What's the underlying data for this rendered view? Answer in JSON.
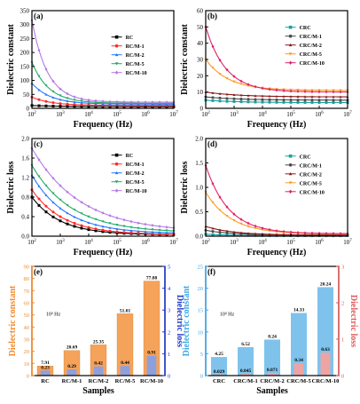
{
  "chart_data": [
    {
      "id": "a",
      "panel_label": "(a)",
      "type": "line",
      "xlabel": "Frequency (Hz)",
      "ylabel": "Dielectric constant",
      "xscale": "log",
      "xlim": [
        100,
        10000000
      ],
      "ylim": [
        0,
        350
      ],
      "x_ticks": [
        2,
        3,
        4,
        5,
        6,
        7
      ],
      "y_ticks": [
        0,
        50,
        100,
        150,
        200,
        250,
        300,
        350
      ],
      "legend_position": "right-middle",
      "series": [
        {
          "name": "RC",
          "color": "#000000",
          "marker": "square",
          "hi": 10,
          "lo": 6,
          "tau": 1.2
        },
        {
          "name": "RC/M-1",
          "color": "#ff2a2a",
          "marker": "circle",
          "hi": 40,
          "lo": 10,
          "tau": 0.7
        },
        {
          "name": "RC/M-2",
          "color": "#2277ff",
          "marker": "triangle",
          "hi": 90,
          "lo": 15,
          "tau": 0.65
        },
        {
          "name": "RC/M-5",
          "color": "#22aa66",
          "marker": "triangle-down",
          "hi": 165,
          "lo": 18,
          "tau": 0.6
        },
        {
          "name": "RC/M-10",
          "color": "#b478e6",
          "marker": "diamond",
          "hi": 315,
          "lo": 22,
          "tau": 0.55
        }
      ]
    },
    {
      "id": "b",
      "panel_label": "(b)",
      "type": "line",
      "xlabel": "Frequency (Hz)",
      "ylabel": "Dielectric constant",
      "xscale": "log",
      "xlim": [
        100,
        10000000
      ],
      "ylim": [
        0,
        60
      ],
      "x_ticks": [
        2,
        3,
        4,
        5,
        6,
        7
      ],
      "y_ticks": [
        0,
        10,
        20,
        30,
        40,
        50,
        60
      ],
      "legend_position": "right-top",
      "series": [
        {
          "name": "CRC",
          "color": "#1aa0a0",
          "marker": "square",
          "hi": 5,
          "lo": 3.5,
          "tau": 1.2
        },
        {
          "name": "CRC/M-1",
          "color": "#4a4a4a",
          "marker": "circle",
          "hi": 7,
          "lo": 5,
          "tau": 1.2
        },
        {
          "name": "CRC/M-2",
          "color": "#8b1a1a",
          "marker": "triangle",
          "hi": 10,
          "lo": 7,
          "tau": 1.2
        },
        {
          "name": "CRC/M-5",
          "color": "#ff9922",
          "marker": "triangle-down",
          "hi": 30,
          "lo": 11,
          "tau": 0.8
        },
        {
          "name": "CRC/M-10",
          "color": "#e0206a",
          "marker": "diamond",
          "hi": 50,
          "lo": 10,
          "tau": 0.7
        }
      ]
    },
    {
      "id": "c",
      "panel_label": "(c)",
      "type": "line",
      "xlabel": "Frequency (Hz)",
      "ylabel": "Dielectric loss",
      "xscale": "log",
      "xlim": [
        100,
        10000000
      ],
      "ylim": [
        0,
        2.0
      ],
      "x_ticks": [
        2,
        3,
        4,
        5,
        6,
        7
      ],
      "y_ticks": [
        0.0,
        0.4,
        0.8,
        1.2,
        1.6,
        2.0
      ],
      "legend_position": "right-top",
      "series": [
        {
          "name": "RC",
          "color": "#000000",
          "marker": "square",
          "hi": 0.8,
          "lo": 0.03,
          "tau": 1.0
        },
        {
          "name": "RC/M-1",
          "color": "#ff2a2a",
          "marker": "circle",
          "hi": 0.95,
          "lo": 0.03,
          "tau": 1.1
        },
        {
          "name": "RC/M-2",
          "color": "#2277ff",
          "marker": "triangle",
          "hi": 1.25,
          "lo": 0.05,
          "tau": 1.2
        },
        {
          "name": "RC/M-5",
          "color": "#22aa66",
          "marker": "triangle-down",
          "hi": 1.45,
          "lo": 0.07,
          "tau": 1.4
        },
        {
          "name": "RC/M-10",
          "color": "#b478e6",
          "marker": "diamond",
          "hi": 1.8,
          "lo": 0.08,
          "tau": 1.7
        }
      ]
    },
    {
      "id": "d",
      "panel_label": "(d)",
      "type": "line",
      "xlabel": "Frequency (Hz)",
      "ylabel": "Dielectric loss",
      "xscale": "log",
      "xlim": [
        100,
        10000000
      ],
      "ylim": [
        0,
        2.0
      ],
      "x_ticks": [
        2,
        3,
        4,
        5,
        6,
        7
      ],
      "y_ticks": [
        0.0,
        0.5,
        1.0,
        1.5,
        2.0
      ],
      "legend_position": "right-top",
      "series": [
        {
          "name": "CRC",
          "color": "#1aa0a0",
          "marker": "square",
          "hi": 0.04,
          "lo": 0.01,
          "tau": 1.0
        },
        {
          "name": "CRC/M-1",
          "color": "#4a4a4a",
          "marker": "circle",
          "hi": 0.12,
          "lo": 0.02,
          "tau": 1.0
        },
        {
          "name": "CRC/M-2",
          "color": "#8b1a1a",
          "marker": "triangle",
          "hi": 0.2,
          "lo": 0.02,
          "tau": 1.0
        },
        {
          "name": "CRC/M-5",
          "color": "#ff9922",
          "marker": "triangle-down",
          "hi": 0.9,
          "lo": 0.04,
          "tau": 0.9
        },
        {
          "name": "CRC/M-10",
          "color": "#e0206a",
          "marker": "diamond",
          "hi": 1.45,
          "lo": 0.05,
          "tau": 0.8
        }
      ]
    },
    {
      "id": "e",
      "panel_label": "(e)",
      "type": "bar",
      "xlabel": "Samples",
      "ylabel": "Dielectric constant",
      "ylabel_right": "Dielectric loss",
      "annotation": "10³ Hz",
      "categories": [
        "RC",
        "RC/M-1",
        "RC/M-2",
        "RC/M-5",
        "RC/M-10"
      ],
      "ylim": [
        0,
        90
      ],
      "ylim_right": [
        0,
        5
      ],
      "y_ticks": [
        0,
        10,
        20,
        30,
        40,
        50,
        60,
        70,
        80,
        90
      ],
      "y_ticks_right": [
        0,
        1,
        2,
        3,
        4,
        5
      ],
      "series": [
        {
          "name": "Dielectric constant",
          "axis": "left",
          "color": "#f5a25a",
          "values": [
            7.91,
            20.69,
            25.35,
            51.01,
            77.88
          ],
          "labels": [
            "7.91",
            "20.69",
            "25.35",
            "51.01",
            "77.88"
          ]
        },
        {
          "name": "Dielectric loss",
          "axis": "right",
          "color": "#8ea0dc",
          "values": [
            0.23,
            0.29,
            0.42,
            0.44,
            0.91
          ],
          "labels": [
            "0.23",
            "0.29",
            "0.42",
            "0.44",
            "0.91"
          ]
        }
      ]
    },
    {
      "id": "f",
      "panel_label": "(f)",
      "type": "bar",
      "xlabel": "Samples",
      "ylabel": "Dielectric constant",
      "ylabel_right": "Dielectric loss",
      "annotation": "10³ Hz",
      "categories": [
        "CRC",
        "CRC/M-1",
        "CRC/M-2",
        "CRC/M-5",
        "CRC/M-10"
      ],
      "ylim": [
        0,
        25
      ],
      "ylim_right": [
        0,
        3
      ],
      "y_ticks": [
        0,
        5,
        10,
        15,
        20,
        25
      ],
      "y_ticks_right": [
        0,
        1,
        2,
        3
      ],
      "series": [
        {
          "name": "Dielectric constant",
          "axis": "left",
          "color": "#7fc3ec",
          "values": [
            4.25,
            6.52,
            8.24,
            14.33,
            20.24
          ],
          "labels": [
            "4.25",
            "6.52",
            "8.24",
            "14.33",
            "20.24"
          ]
        },
        {
          "name": "Dielectric loss",
          "axis": "right",
          "color": "#f0a3a3",
          "values": [
            0.029,
            0.045,
            0.071,
            0.34,
            0.63
          ],
          "labels": [
            "0.029",
            "0.045",
            "0.071",
            "0.34",
            "0.63"
          ]
        }
      ]
    }
  ]
}
